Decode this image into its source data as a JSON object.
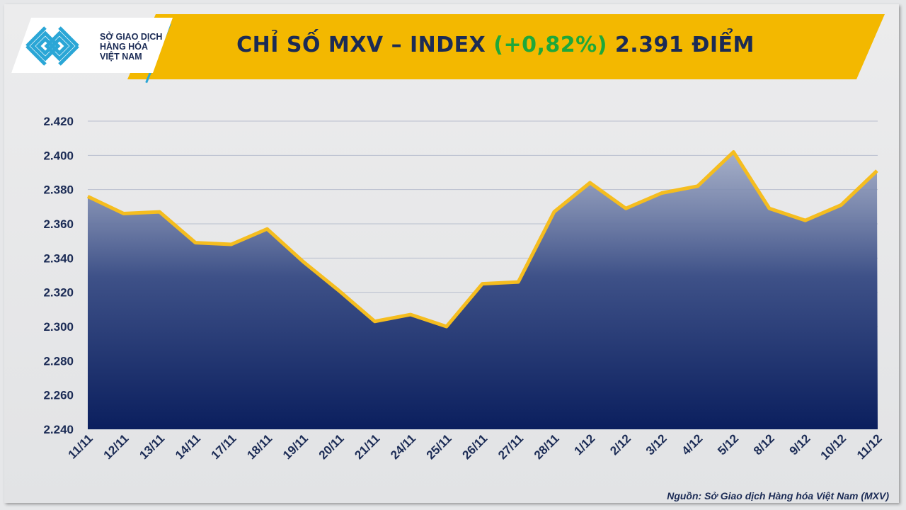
{
  "header": {
    "title_prefix": "CHỈ SỐ MXV – INDEX ",
    "title_change": "(+0,82%)",
    "title_suffix": " 2.391 ĐIỂM"
  },
  "logo": {
    "line1": "SỞ GIAO DỊCH",
    "line2": "HÀNG HÓA",
    "line3": "VIỆT NAM"
  },
  "source": "Nguồn: Sở Giao dịch Hàng hóa Việt Nam (MXV)",
  "colors": {
    "banner": "#f3b800",
    "line": "#f5bd1f",
    "fill_top": "#9aa5c2",
    "fill_bottom": "#0b1f5e",
    "positive": "#1ea83a",
    "text": "#1b2b55"
  },
  "chart_data": {
    "type": "area",
    "title": "CHỈ SỐ MXV – INDEX (+0,82%) 2.391 ĐIỂM",
    "categories": [
      "11/11",
      "12/11",
      "13/11",
      "14/11",
      "17/11",
      "18/11",
      "19/11",
      "20/11",
      "21/11",
      "24/11",
      "25/11",
      "26/11",
      "27/11",
      "28/11",
      "1/12",
      "2/12",
      "3/12",
      "4/12",
      "5/12",
      "8/12",
      "9/12",
      "10/12",
      "11/12"
    ],
    "values": [
      2376,
      2366,
      2367,
      2349,
      2348,
      2357,
      2338,
      2321,
      2303,
      2307,
      2300,
      2325,
      2326,
      2367,
      2384,
      2369,
      2378,
      2382,
      2402,
      2369,
      2362,
      2371,
      2391
    ],
    "ylim": [
      2240,
      2420
    ],
    "yticks": [
      "2.240",
      "2.260",
      "2.280",
      "2.300",
      "2.320",
      "2.340",
      "2.360",
      "2.380",
      "2.400",
      "2.420"
    ],
    "grid": true,
    "legend": "none"
  }
}
